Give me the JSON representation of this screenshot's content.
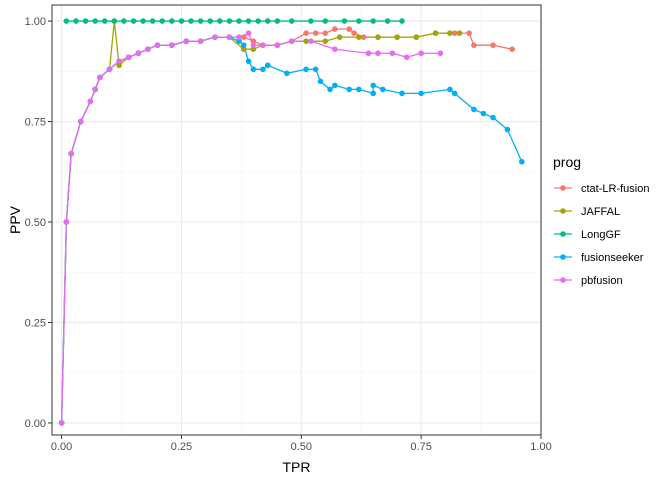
{
  "chart_data": {
    "type": "line",
    "title": "",
    "xlabel": "TPR",
    "ylabel": "PPV",
    "xlim": [
      -0.02,
      1.0
    ],
    "ylim": [
      -0.03,
      1.04
    ],
    "x_ticks": [
      0.0,
      0.25,
      0.5,
      0.75,
      1.0
    ],
    "x_tick_labels": [
      "0.00",
      "0.25",
      "0.50",
      "0.75",
      "1.00"
    ],
    "y_ticks": [
      0.0,
      0.25,
      0.5,
      0.75,
      1.0
    ],
    "y_tick_labels": [
      "0.00",
      "0.25",
      "0.50",
      "0.75",
      "1.00"
    ],
    "grid": true,
    "legend": {
      "title": "prog",
      "position": "right"
    },
    "series": [
      {
        "name": "ctat-LR-fusion",
        "color": "#F8766D",
        "points": [
          [
            0.0,
            0.0
          ],
          [
            0.01,
            0.5
          ],
          [
            0.02,
            0.67
          ],
          [
            0.04,
            0.75
          ],
          [
            0.06,
            0.8
          ],
          [
            0.07,
            0.83
          ],
          [
            0.08,
            0.86
          ],
          [
            0.1,
            0.88
          ],
          [
            0.12,
            0.9
          ],
          [
            0.14,
            0.91
          ],
          [
            0.16,
            0.92
          ],
          [
            0.18,
            0.93
          ],
          [
            0.2,
            0.94
          ],
          [
            0.23,
            0.94
          ],
          [
            0.26,
            0.95
          ],
          [
            0.29,
            0.95
          ],
          [
            0.32,
            0.96
          ],
          [
            0.35,
            0.96
          ],
          [
            0.38,
            0.96
          ],
          [
            0.4,
            0.95
          ],
          [
            0.42,
            0.94
          ],
          [
            0.45,
            0.94
          ],
          [
            0.48,
            0.95
          ],
          [
            0.51,
            0.97
          ],
          [
            0.53,
            0.97
          ],
          [
            0.55,
            0.97
          ],
          [
            0.57,
            0.98
          ],
          [
            0.6,
            0.98
          ],
          [
            0.61,
            0.97
          ],
          [
            0.63,
            0.96
          ],
          [
            0.66,
            0.96
          ],
          [
            0.7,
            0.96
          ],
          [
            0.74,
            0.96
          ],
          [
            0.78,
            0.97
          ],
          [
            0.82,
            0.97
          ],
          [
            0.85,
            0.97
          ],
          [
            0.86,
            0.94
          ],
          [
            0.9,
            0.94
          ],
          [
            0.94,
            0.93
          ]
        ]
      },
      {
        "name": "JAFFAL",
        "color": "#A3A500",
        "points": [
          [
            0.0,
            0.0
          ],
          [
            0.01,
            0.5
          ],
          [
            0.02,
            0.67
          ],
          [
            0.04,
            0.75
          ],
          [
            0.06,
            0.8
          ],
          [
            0.07,
            0.83
          ],
          [
            0.08,
            0.86
          ],
          [
            0.1,
            0.88
          ],
          [
            0.11,
            1.0
          ],
          [
            0.12,
            0.89
          ],
          [
            0.14,
            0.91
          ],
          [
            0.16,
            0.92
          ],
          [
            0.18,
            0.93
          ],
          [
            0.2,
            0.94
          ],
          [
            0.23,
            0.94
          ],
          [
            0.26,
            0.95
          ],
          [
            0.29,
            0.95
          ],
          [
            0.32,
            0.96
          ],
          [
            0.35,
            0.96
          ],
          [
            0.38,
            0.93
          ],
          [
            0.4,
            0.93
          ],
          [
            0.42,
            0.94
          ],
          [
            0.45,
            0.94
          ],
          [
            0.48,
            0.95
          ],
          [
            0.51,
            0.95
          ],
          [
            0.55,
            0.95
          ],
          [
            0.58,
            0.96
          ],
          [
            0.62,
            0.96
          ],
          [
            0.66,
            0.96
          ],
          [
            0.7,
            0.96
          ],
          [
            0.74,
            0.96
          ],
          [
            0.78,
            0.97
          ],
          [
            0.81,
            0.97
          ],
          [
            0.83,
            0.97
          ]
        ]
      },
      {
        "name": "LongGF",
        "color": "#00BF7D",
        "points": [
          [
            0.01,
            1.0
          ],
          [
            0.03,
            1.0
          ],
          [
            0.05,
            1.0
          ],
          [
            0.07,
            1.0
          ],
          [
            0.09,
            1.0
          ],
          [
            0.11,
            1.0
          ],
          [
            0.13,
            1.0
          ],
          [
            0.15,
            1.0
          ],
          [
            0.17,
            1.0
          ],
          [
            0.19,
            1.0
          ],
          [
            0.21,
            1.0
          ],
          [
            0.23,
            1.0
          ],
          [
            0.25,
            1.0
          ],
          [
            0.27,
            1.0
          ],
          [
            0.29,
            1.0
          ],
          [
            0.31,
            1.0
          ],
          [
            0.33,
            1.0
          ],
          [
            0.35,
            1.0
          ],
          [
            0.37,
            1.0
          ],
          [
            0.39,
            1.0
          ],
          [
            0.41,
            1.0
          ],
          [
            0.43,
            1.0
          ],
          [
            0.45,
            1.0
          ],
          [
            0.48,
            1.0
          ],
          [
            0.52,
            1.0
          ],
          [
            0.55,
            1.0
          ],
          [
            0.59,
            1.0
          ],
          [
            0.62,
            1.0
          ],
          [
            0.65,
            1.0
          ],
          [
            0.68,
            1.0
          ],
          [
            0.71,
            1.0
          ]
        ]
      },
      {
        "name": "fusionseeker",
        "color": "#00B0F6",
        "points": [
          [
            0.0,
            0.0
          ],
          [
            0.01,
            0.5
          ],
          [
            0.02,
            0.67
          ],
          [
            0.04,
            0.75
          ],
          [
            0.06,
            0.8
          ],
          [
            0.07,
            0.83
          ],
          [
            0.08,
            0.86
          ],
          [
            0.1,
            0.88
          ],
          [
            0.12,
            0.9
          ],
          [
            0.14,
            0.91
          ],
          [
            0.16,
            0.92
          ],
          [
            0.18,
            0.93
          ],
          [
            0.2,
            0.94
          ],
          [
            0.23,
            0.94
          ],
          [
            0.26,
            0.95
          ],
          [
            0.29,
            0.95
          ],
          [
            0.32,
            0.96
          ],
          [
            0.35,
            0.96
          ],
          [
            0.37,
            0.95
          ],
          [
            0.38,
            0.94
          ],
          [
            0.39,
            0.9
          ],
          [
            0.4,
            0.88
          ],
          [
            0.42,
            0.88
          ],
          [
            0.43,
            0.89
          ],
          [
            0.47,
            0.87
          ],
          [
            0.51,
            0.88
          ],
          [
            0.53,
            0.88
          ],
          [
            0.54,
            0.85
          ],
          [
            0.56,
            0.83
          ],
          [
            0.57,
            0.84
          ],
          [
            0.6,
            0.83
          ],
          [
            0.62,
            0.83
          ],
          [
            0.65,
            0.82
          ],
          [
            0.65,
            0.84
          ],
          [
            0.67,
            0.83
          ],
          [
            0.71,
            0.82
          ],
          [
            0.75,
            0.82
          ],
          [
            0.81,
            0.83
          ],
          [
            0.82,
            0.82
          ],
          [
            0.86,
            0.78
          ],
          [
            0.88,
            0.77
          ],
          [
            0.9,
            0.76
          ],
          [
            0.93,
            0.73
          ],
          [
            0.96,
            0.65
          ]
        ]
      },
      {
        "name": "pbfusion",
        "color": "#E76BF3",
        "points": [
          [
            0.0,
            0.0
          ],
          [
            0.01,
            0.5
          ],
          [
            0.02,
            0.67
          ],
          [
            0.04,
            0.75
          ],
          [
            0.06,
            0.8
          ],
          [
            0.07,
            0.83
          ],
          [
            0.08,
            0.86
          ],
          [
            0.1,
            0.88
          ],
          [
            0.12,
            0.9
          ],
          [
            0.14,
            0.91
          ],
          [
            0.16,
            0.92
          ],
          [
            0.18,
            0.93
          ],
          [
            0.2,
            0.94
          ],
          [
            0.23,
            0.94
          ],
          [
            0.26,
            0.95
          ],
          [
            0.29,
            0.95
          ],
          [
            0.32,
            0.96
          ],
          [
            0.35,
            0.96
          ],
          [
            0.37,
            0.96
          ],
          [
            0.39,
            0.97
          ],
          [
            0.4,
            0.94
          ],
          [
            0.42,
            0.94
          ],
          [
            0.45,
            0.94
          ],
          [
            0.48,
            0.95
          ],
          [
            0.52,
            0.95
          ],
          [
            0.57,
            0.93
          ],
          [
            0.64,
            0.92
          ],
          [
            0.66,
            0.92
          ],
          [
            0.69,
            0.92
          ],
          [
            0.72,
            0.91
          ],
          [
            0.75,
            0.92
          ],
          [
            0.79,
            0.92
          ]
        ]
      }
    ]
  }
}
